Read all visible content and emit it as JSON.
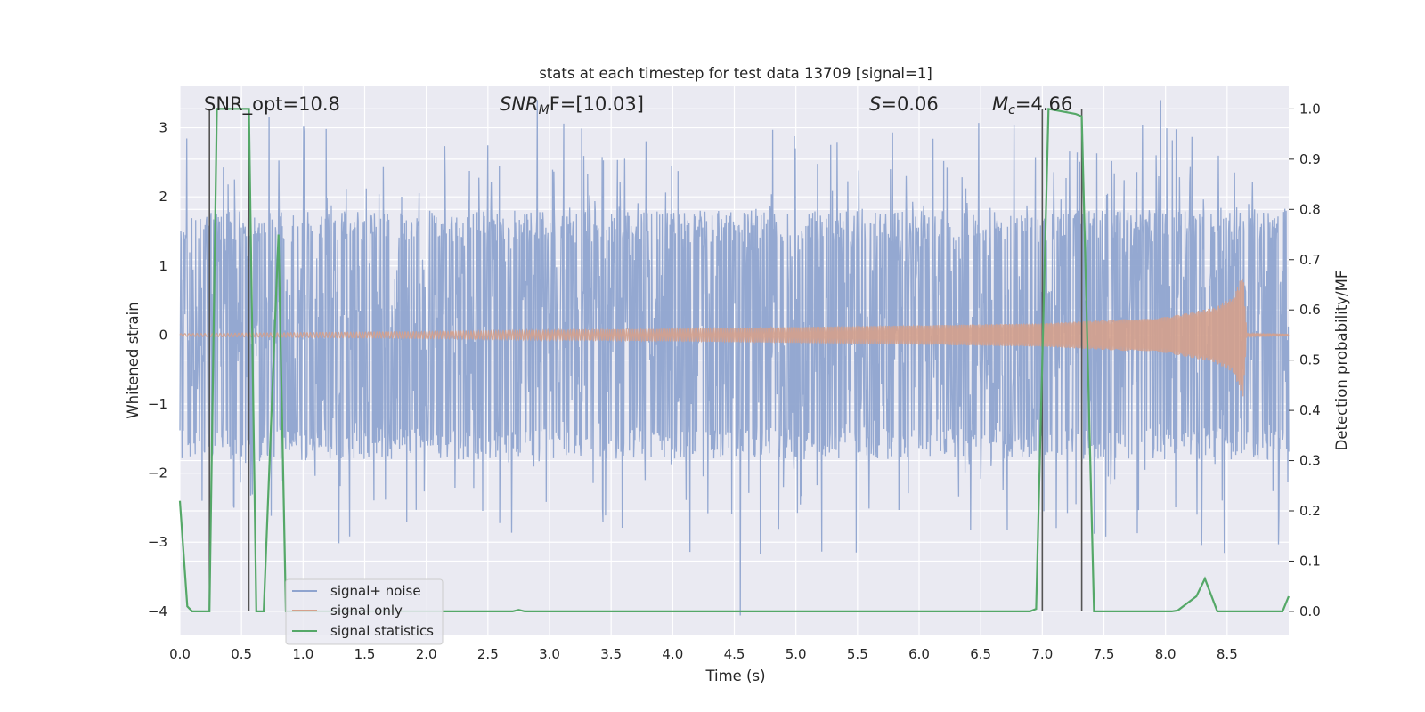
{
  "chart_data": {
    "type": "line",
    "title": "stats at each timestep for test data 13709 [signal=1]",
    "xlabel": "Time (s)",
    "ylabel_left": "Whitened strain",
    "ylabel_right": "Detection probability/MF",
    "xlim": [
      0,
      9.0
    ],
    "ylim_left": [
      -4.35,
      3.6
    ],
    "ylim_right": [
      -0.048,
      1.045
    ],
    "x_ticks": [
      "0.0",
      "0.5",
      "1.0",
      "1.5",
      "2.0",
      "2.5",
      "3.0",
      "3.5",
      "4.0",
      "4.5",
      "5.0",
      "5.5",
      "6.0",
      "6.5",
      "7.0",
      "7.5",
      "8.0",
      "8.5"
    ],
    "x_tick_values": [
      0,
      0.5,
      1,
      1.5,
      2,
      2.5,
      3,
      3.5,
      4,
      4.5,
      5,
      5.5,
      6,
      6.5,
      7,
      7.5,
      8,
      8.5
    ],
    "y_left_ticks": [
      "−4",
      "−3",
      "−2",
      "−1",
      "0",
      "1",
      "2",
      "3"
    ],
    "y_left_tick_values": [
      -4,
      -3,
      -2,
      -1,
      0,
      1,
      2,
      3
    ],
    "y_right_ticks": [
      "0.0",
      "0.1",
      "0.2",
      "0.3",
      "0.4",
      "0.5",
      "0.6",
      "0.7",
      "0.8",
      "0.9",
      "1.0"
    ],
    "y_right_tick_values": [
      0,
      0.1,
      0.2,
      0.3,
      0.4,
      0.5,
      0.6,
      0.7,
      0.8,
      0.9,
      1.0
    ],
    "annotations": {
      "snr_opt": "SNR_opt=10.8",
      "snr_mf_main": "SNR",
      "snr_mf_sub": "M",
      "snr_mf_rest": "F=[10.03]",
      "s_main": "S",
      "s_rest": "=0.06",
      "mc_main": "M",
      "mc_sub": "c",
      "mc_rest": "=4.66"
    },
    "series": [
      {
        "name": "signal+ noise",
        "color": "#8fa4cf",
        "axis": "left",
        "description": "whitened noisy strain, envelope approx ±1.8 with spikes to about ±3",
        "t_end": 9.0,
        "envelope": 1.8
      },
      {
        "name": "signal only",
        "color": "#d4a08c",
        "axis": "left",
        "description": "chirp with growing amplitude, merger near t=8.65",
        "amplitude_points": [
          [
            0,
            0.02
          ],
          [
            2,
            0.05
          ],
          [
            4,
            0.09
          ],
          [
            6,
            0.14
          ],
          [
            7,
            0.17
          ],
          [
            8,
            0.26
          ],
          [
            8.4,
            0.4
          ],
          [
            8.55,
            0.55
          ],
          [
            8.63,
            0.9
          ],
          [
            8.66,
            0.02
          ],
          [
            9.0,
            0.01
          ]
        ]
      },
      {
        "name": "signal statistics",
        "color": "#55a868",
        "axis": "right",
        "x": [
          0.0,
          0.06,
          0.1,
          0.24,
          0.3,
          0.56,
          0.62,
          0.68,
          0.8,
          0.86,
          0.9,
          2.7,
          2.75,
          2.8,
          6.9,
          6.95,
          7.05,
          7.27,
          7.32,
          7.42,
          7.5,
          8.05,
          8.1,
          8.25,
          8.32,
          8.42,
          8.5,
          8.95,
          9.0
        ],
        "y": [
          0.22,
          0.01,
          0.0,
          0.0,
          1.0,
          1.0,
          0.0,
          0.0,
          0.75,
          0.0,
          0.0,
          0.0,
          0.003,
          0.0,
          0.0,
          0.005,
          1.0,
          0.99,
          0.985,
          0.0,
          0.0,
          0.0,
          0.002,
          0.03,
          0.065,
          0.0,
          0.0,
          0.0,
          0.03
        ]
      }
    ],
    "vertical_markers": [
      0.24,
      0.56,
      7.0,
      7.32
    ],
    "marker_color": "#555555",
    "marker_bottom_right": 0.0,
    "marker_top_right": 1.0,
    "legend": {
      "position": "lower-left",
      "entries": [
        {
          "label": "signal+ noise",
          "color": "#8fa4cf"
        },
        {
          "label": "signal only",
          "color": "#d4a08c"
        },
        {
          "label": "signal statistics",
          "color": "#55a868"
        }
      ]
    },
    "background_color": "#eaeaf2",
    "grid_color": "#ffffff"
  }
}
